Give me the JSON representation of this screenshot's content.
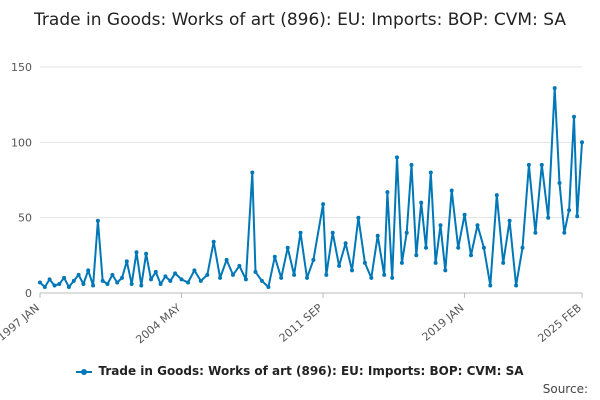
{
  "chart_data": {
    "type": "line",
    "title": "Trade in Goods: Works of art (896): EU: Imports: BOP: CVM: SA",
    "xlabel": "",
    "ylabel": "",
    "x_range": [
      "1997 JAN",
      "2025 FEB"
    ],
    "ylim": [
      0,
      150
    ],
    "y_ticks": [
      0,
      50,
      100,
      150
    ],
    "x_ticks": [
      "1997 JAN",
      "2004 MAY",
      "2011 SEP",
      "2019 JAN",
      "2025 FEB"
    ],
    "grid": "horizontal",
    "legend_position": "bottom",
    "series": [
      {
        "name": "Trade in Goods: Works of art (896): EU: Imports: BOP: CVM: SA",
        "color": "#0077b6",
        "points": [
          [
            "1997-01",
            7
          ],
          [
            "1997-04",
            4
          ],
          [
            "1997-07",
            9
          ],
          [
            "1997-10",
            5
          ],
          [
            "1998-01",
            6
          ],
          [
            "1998-04",
            10
          ],
          [
            "1998-07",
            4
          ],
          [
            "1998-10",
            8
          ],
          [
            "1999-01",
            12
          ],
          [
            "1999-04",
            6
          ],
          [
            "1999-07",
            15
          ],
          [
            "1999-10",
            5
          ],
          [
            "2000-01",
            48
          ],
          [
            "2000-04",
            8
          ],
          [
            "2000-07",
            6
          ],
          [
            "2000-10",
            12
          ],
          [
            "2001-01",
            7
          ],
          [
            "2001-04",
            10
          ],
          [
            "2001-07",
            21
          ],
          [
            "2001-10",
            6
          ],
          [
            "2002-01",
            27
          ],
          [
            "2002-04",
            5
          ],
          [
            "2002-07",
            26
          ],
          [
            "2002-10",
            9
          ],
          [
            "2003-01",
            14
          ],
          [
            "2003-04",
            6
          ],
          [
            "2003-07",
            11
          ],
          [
            "2003-10",
            8
          ],
          [
            "2004-01",
            13
          ],
          [
            "2004-05",
            9
          ],
          [
            "2004-09",
            7
          ],
          [
            "2005-01",
            15
          ],
          [
            "2005-05",
            8
          ],
          [
            "2005-09",
            12
          ],
          [
            "2006-01",
            34
          ],
          [
            "2006-05",
            10
          ],
          [
            "2006-09",
            22
          ],
          [
            "2007-01",
            12
          ],
          [
            "2007-05",
            18
          ],
          [
            "2007-09",
            9
          ],
          [
            "2008-01",
            80
          ],
          [
            "2008-03",
            14
          ],
          [
            "2008-07",
            8
          ],
          [
            "2008-11",
            4
          ],
          [
            "2009-03",
            24
          ],
          [
            "2009-07",
            10
          ],
          [
            "2009-11",
            30
          ],
          [
            "2010-03",
            12
          ],
          [
            "2010-07",
            40
          ],
          [
            "2010-11",
            10
          ],
          [
            "2011-03",
            22
          ],
          [
            "2011-09",
            59
          ],
          [
            "2011-11",
            12
          ],
          [
            "2012-03",
            40
          ],
          [
            "2012-07",
            18
          ],
          [
            "2012-11",
            33
          ],
          [
            "2013-03",
            15
          ],
          [
            "2013-07",
            50
          ],
          [
            "2013-11",
            20
          ],
          [
            "2014-03",
            10
          ],
          [
            "2014-07",
            38
          ],
          [
            "2014-11",
            12
          ],
          [
            "2015-01",
            67
          ],
          [
            "2015-04",
            10
          ],
          [
            "2015-07",
            90
          ],
          [
            "2015-10",
            20
          ],
          [
            "2016-01",
            40
          ],
          [
            "2016-04",
            85
          ],
          [
            "2016-07",
            25
          ],
          [
            "2016-10",
            60
          ],
          [
            "2017-01",
            30
          ],
          [
            "2017-04",
            80
          ],
          [
            "2017-07",
            20
          ],
          [
            "2017-10",
            45
          ],
          [
            "2018-01",
            15
          ],
          [
            "2018-05",
            68
          ],
          [
            "2018-09",
            30
          ],
          [
            "2019-01",
            52
          ],
          [
            "2019-05",
            25
          ],
          [
            "2019-09",
            45
          ],
          [
            "2020-01",
            30
          ],
          [
            "2020-05",
            5
          ],
          [
            "2020-09",
            65
          ],
          [
            "2021-01",
            20
          ],
          [
            "2021-05",
            48
          ],
          [
            "2021-09",
            5
          ],
          [
            "2022-01",
            30
          ],
          [
            "2022-05",
            85
          ],
          [
            "2022-09",
            40
          ],
          [
            "2023-01",
            85
          ],
          [
            "2023-05",
            50
          ],
          [
            "2023-09",
            136
          ],
          [
            "2023-12",
            73
          ],
          [
            "2024-03",
            40
          ],
          [
            "2024-06",
            55
          ],
          [
            "2024-09",
            117
          ],
          [
            "2024-11",
            51
          ],
          [
            "2025-02",
            100
          ]
        ]
      }
    ]
  },
  "footer": {
    "source_label": "Source:"
  }
}
